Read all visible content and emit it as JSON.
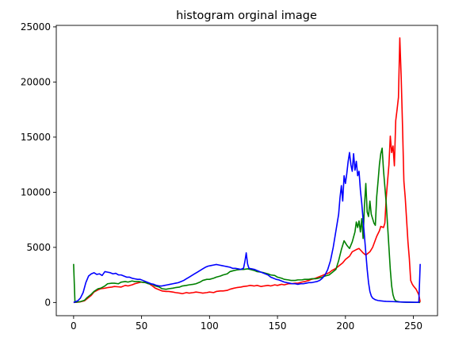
{
  "chart_data": {
    "type": "line",
    "title": "histogram orginal image",
    "xlabel": "",
    "ylabel": "",
    "xlim": [
      -12.75,
      267.75
    ],
    "ylim": [
      -1197,
      25137
    ],
    "xticks": [
      0,
      50,
      100,
      150,
      200,
      250
    ],
    "yticks": [
      0,
      5000,
      10000,
      15000,
      20000,
      25000
    ],
    "grid": false,
    "legend": "none",
    "series": [
      {
        "color": "#ff0000",
        "x": [
          0,
          2,
          5,
          8,
          10,
          13,
          15,
          18,
          20,
          23,
          25,
          28,
          30,
          33,
          35,
          38,
          40,
          43,
          45,
          48,
          50,
          53,
          55,
          58,
          60,
          63,
          65,
          68,
          70,
          73,
          75,
          78,
          80,
          83,
          85,
          88,
          90,
          93,
          95,
          98,
          100,
          103,
          105,
          108,
          110,
          113,
          115,
          118,
          120,
          123,
          125,
          128,
          130,
          133,
          135,
          138,
          140,
          143,
          145,
          148,
          150,
          153,
          155,
          158,
          160,
          163,
          165,
          168,
          170,
          173,
          175,
          178,
          180,
          183,
          185,
          188,
          190,
          193,
          195,
          198,
          200,
          203,
          205,
          208,
          210,
          213,
          215,
          218,
          220,
          223,
          225,
          226,
          228,
          229,
          230,
          231,
          232,
          233,
          234,
          235,
          236,
          237,
          238,
          239,
          240,
          241,
          242,
          243,
          244,
          245,
          246,
          247,
          248,
          249,
          250,
          252,
          254,
          255
        ],
        "values": [
          0,
          20,
          60,
          150,
          350,
          650,
          950,
          1150,
          1250,
          1300,
          1350,
          1400,
          1450,
          1420,
          1400,
          1550,
          1500,
          1600,
          1700,
          1800,
          1850,
          1800,
          1750,
          1500,
          1300,
          1150,
          1050,
          1000,
          1000,
          950,
          900,
          850,
          800,
          900,
          850,
          900,
          950,
          900,
          850,
          900,
          950,
          900,
          1000,
          1050,
          1050,
          1100,
          1200,
          1300,
          1350,
          1400,
          1450,
          1500,
          1550,
          1500,
          1550,
          1450,
          1500,
          1550,
          1500,
          1600,
          1550,
          1650,
          1600,
          1700,
          1700,
          1750,
          1750,
          1850,
          1900,
          2000,
          2100,
          2200,
          2300,
          2450,
          2550,
          2700,
          2900,
          3100,
          3300,
          3600,
          3900,
          4200,
          4600,
          4800,
          4900,
          4500,
          4300,
          4600,
          5000,
          6000,
          6500,
          6900,
          6800,
          7200,
          9500,
          11000,
          12500,
          15100,
          13600,
          14200,
          12400,
          16500,
          17500,
          18600,
          24000,
          20500,
          16000,
          11000,
          9500,
          7500,
          5500,
          4000,
          2000,
          1700,
          1500,
          1200,
          700,
          50
        ]
      },
      {
        "color": "#008000",
        "x": [
          0,
          1,
          2,
          5,
          8,
          10,
          13,
          15,
          18,
          20,
          23,
          25,
          28,
          30,
          33,
          35,
          38,
          40,
          43,
          45,
          48,
          50,
          53,
          55,
          58,
          60,
          63,
          65,
          68,
          70,
          73,
          75,
          78,
          80,
          83,
          85,
          88,
          90,
          93,
          95,
          98,
          100,
          103,
          105,
          108,
          110,
          113,
          115,
          118,
          120,
          123,
          125,
          128,
          130,
          133,
          135,
          138,
          140,
          143,
          145,
          148,
          150,
          153,
          155,
          158,
          160,
          163,
          165,
          168,
          170,
          173,
          175,
          178,
          180,
          183,
          185,
          188,
          190,
          193,
          195,
          197,
          199,
          201,
          203,
          205,
          207,
          208,
          209,
          210,
          211,
          212,
          213,
          214,
          215,
          216,
          217,
          218,
          219,
          220,
          221,
          222,
          223,
          224,
          225,
          226,
          227,
          228,
          229,
          230,
          231,
          232,
          233,
          234,
          235,
          236,
          237,
          238,
          240,
          243,
          245,
          248,
          250,
          253,
          255
        ],
        "values": [
          3500,
          20,
          30,
          80,
          200,
          450,
          750,
          1000,
          1250,
          1300,
          1500,
          1700,
          1750,
          1750,
          1700,
          1850,
          1900,
          1850,
          1950,
          1900,
          1900,
          1850,
          1800,
          1700,
          1650,
          1500,
          1400,
          1250,
          1200,
          1250,
          1300,
          1350,
          1400,
          1500,
          1550,
          1600,
          1650,
          1700,
          1850,
          2000,
          2100,
          2100,
          2200,
          2300,
          2400,
          2500,
          2600,
          2800,
          2900,
          2950,
          3000,
          3000,
          3050,
          3000,
          2900,
          2800,
          2750,
          2700,
          2600,
          2500,
          2450,
          2300,
          2200,
          2100,
          2050,
          2000,
          2000,
          2050,
          2050,
          2100,
          2100,
          2150,
          2150,
          2200,
          2300,
          2400,
          2500,
          2700,
          3000,
          3800,
          4800,
          5600,
          5200,
          4900,
          5500,
          6400,
          7300,
          6800,
          7400,
          6400,
          7600,
          5800,
          8800,
          10800,
          8200,
          7800,
          9200,
          8000,
          7600,
          7200,
          7000,
          9600,
          11000,
          12500,
          13500,
          14000,
          12000,
          10500,
          9000,
          7000,
          5000,
          3000,
          1500,
          700,
          300,
          150,
          100,
          50,
          30,
          20,
          20,
          15,
          10,
          0
        ]
      },
      {
        "color": "#0000ff",
        "x": [
          0,
          1,
          3,
          5,
          7,
          9,
          11,
          13,
          15,
          17,
          19,
          21,
          23,
          25,
          27,
          29,
          31,
          33,
          35,
          37,
          39,
          41,
          43,
          45,
          47,
          49,
          51,
          53,
          55,
          57,
          59,
          61,
          63,
          65,
          67,
          69,
          71,
          73,
          75,
          77,
          79,
          81,
          83,
          85,
          87,
          89,
          91,
          93,
          95,
          97,
          99,
          101,
          103,
          105,
          107,
          109,
          111,
          113,
          115,
          117,
          119,
          121,
          123,
          125,
          126,
          127,
          128,
          129,
          131,
          133,
          135,
          137,
          139,
          141,
          143,
          145,
          147,
          149,
          151,
          153,
          155,
          157,
          159,
          161,
          163,
          165,
          167,
          169,
          171,
          173,
          175,
          177,
          179,
          181,
          183,
          185,
          187,
          189,
          191,
          193,
          195,
          196,
          197,
          198,
          199,
          200,
          201,
          202,
          203,
          204,
          205,
          206,
          207,
          208,
          209,
          210,
          211,
          212,
          213,
          214,
          215,
          216,
          217,
          218,
          219,
          220,
          222,
          224,
          226,
          228,
          230,
          235,
          240,
          245,
          250,
          253,
          254,
          255
        ],
        "values": [
          0,
          50,
          150,
          400,
          900,
          1800,
          2400,
          2600,
          2700,
          2550,
          2600,
          2450,
          2800,
          2750,
          2700,
          2600,
          2650,
          2500,
          2500,
          2400,
          2300,
          2300,
          2200,
          2150,
          2100,
          2100,
          2000,
          1900,
          1800,
          1700,
          1650,
          1550,
          1500,
          1500,
          1550,
          1600,
          1650,
          1700,
          1750,
          1800,
          1900,
          2000,
          2150,
          2300,
          2450,
          2600,
          2750,
          2900,
          3050,
          3200,
          3300,
          3350,
          3400,
          3450,
          3400,
          3350,
          3300,
          3250,
          3200,
          3100,
          3100,
          3050,
          3000,
          3100,
          3700,
          4500,
          3500,
          3100,
          3050,
          3000,
          2900,
          2800,
          2700,
          2600,
          2500,
          2300,
          2200,
          2100,
          2050,
          1950,
          1850,
          1800,
          1750,
          1700,
          1700,
          1650,
          1700,
          1700,
          1750,
          1800,
          1800,
          1850,
          1900,
          2000,
          2200,
          2500,
          3000,
          3800,
          5000,
          6500,
          8000,
          9500,
          10600,
          9200,
          11500,
          10800,
          11700,
          12800,
          13600,
          12500,
          11900,
          13500,
          12000,
          12800,
          11500,
          11900,
          10200,
          9000,
          7500,
          6000,
          4500,
          3000,
          1800,
          1000,
          600,
          400,
          250,
          180,
          150,
          120,
          100,
          80,
          50,
          30,
          20,
          10,
          30,
          3500
        ]
      }
    ]
  }
}
